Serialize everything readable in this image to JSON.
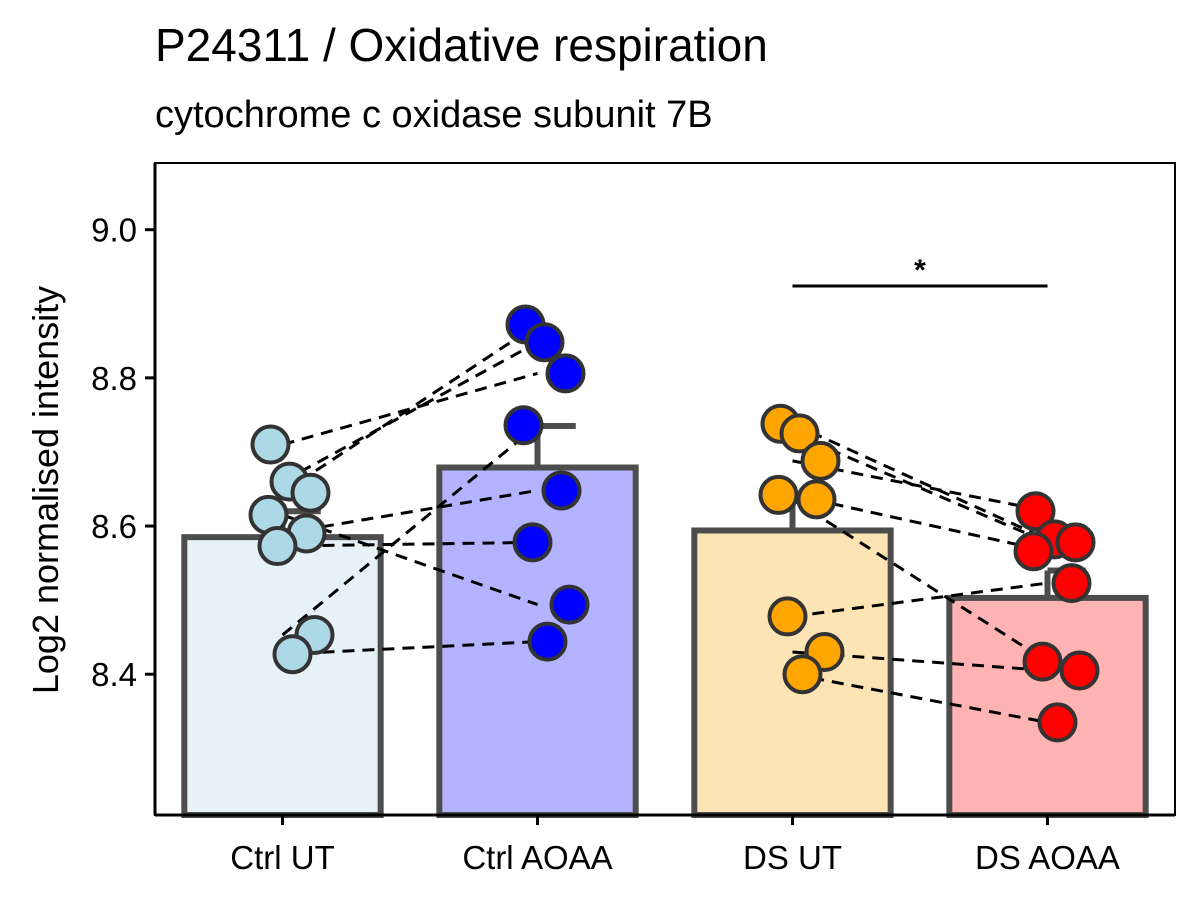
{
  "chart_data": {
    "type": "bar",
    "title": "P24311 / Oxidative respiration",
    "subtitle": "cytochrome c oxidase subunit 7B",
    "xlabel": "",
    "ylabel": "Log2 normalised intensity",
    "ylim": [
      8.21,
      9.09
    ],
    "yticks": [
      8.4,
      8.6,
      8.8,
      9.0
    ],
    "ytick_labels": [
      "8.4",
      "8.6",
      "8.8",
      "9.0"
    ],
    "categories": [
      "Ctrl UT",
      "Ctrl AOAA",
      "DS UT",
      "DS AOAA"
    ],
    "values": [
      8.585,
      8.679,
      8.594,
      8.503
    ],
    "error_upper": [
      8.62,
      8.735,
      8.64,
      8.54
    ],
    "fill_colors": [
      "#E6F2F8",
      "#B3B3FF",
      "#FCE4B4",
      "#FFB3B3"
    ],
    "point_colors": [
      "#ADD8E6",
      "#0000FF",
      "#FFA500",
      "#FF0000"
    ],
    "points": [
      [
        8.71,
        8.66,
        8.645,
        8.615,
        8.59,
        8.573,
        8.453,
        8.427
      ],
      [
        8.872,
        8.848,
        8.806,
        8.736,
        8.648,
        8.578,
        8.494,
        8.444
      ],
      [
        8.738,
        8.725,
        8.688,
        8.642,
        8.636,
        8.478,
        8.43,
        8.4
      ],
      [
        8.62,
        8.582,
        8.578,
        8.566,
        8.523,
        8.417,
        8.405,
        8.335
      ]
    ],
    "pairs": [
      [
        8.71,
        8.806
      ],
      [
        8.66,
        8.848
      ],
      [
        8.645,
        8.872
      ],
      [
        8.615,
        8.494
      ],
      [
        8.59,
        8.648
      ],
      [
        8.573,
        8.578
      ],
      [
        8.453,
        8.736
      ],
      [
        8.427,
        8.444
      ],
      [
        8.738,
        8.582
      ],
      [
        8.725,
        8.578
      ],
      [
        8.688,
        8.62
      ],
      [
        8.642,
        8.566
      ],
      [
        8.636,
        8.417
      ],
      [
        8.478,
        8.523
      ],
      [
        8.43,
        8.405
      ],
      [
        8.4,
        8.335
      ]
    ],
    "significance": {
      "from": "DS UT",
      "to": "DS AOAA",
      "label": "*",
      "y": 8.924
    },
    "grid": false,
    "legend": "none"
  }
}
